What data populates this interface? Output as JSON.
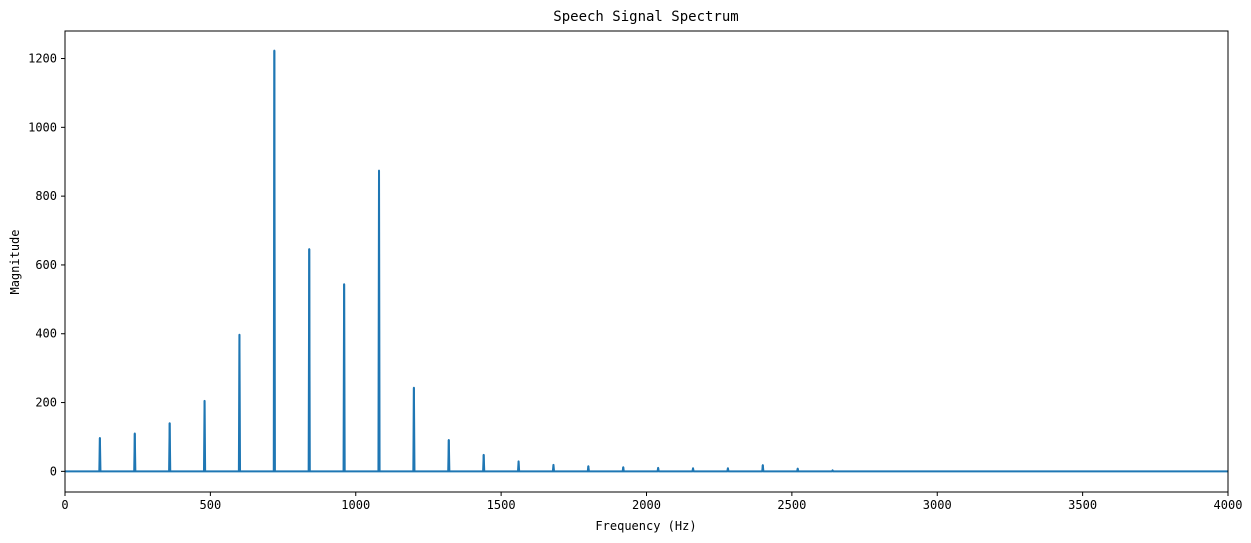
{
  "chart_data": {
    "type": "line",
    "title": "Speech Signal Spectrum",
    "xlabel": "Frequency (Hz)",
    "ylabel": "Magnitude",
    "xlim": [
      0,
      4000
    ],
    "ylim": [
      -60,
      1280
    ],
    "xticks": [
      0,
      500,
      1000,
      1500,
      2000,
      2500,
      3000,
      3500,
      4000
    ],
    "yticks": [
      0,
      200,
      400,
      600,
      800,
      1000,
      1200
    ],
    "grid": false,
    "line_color": "#1f77b4",
    "series": [
      {
        "x": [
          120,
          240,
          360,
          480,
          600,
          720,
          840,
          960,
          1080,
          1200,
          1320,
          1440,
          1560,
          1680,
          1800,
          1920,
          2040,
          2160,
          2280,
          2400,
          2520,
          2640
        ],
        "values": [
          97,
          110,
          140,
          205,
          397,
          1223,
          646,
          544,
          874,
          243,
          91,
          48,
          29,
          19,
          15,
          12,
          10,
          9,
          9,
          18,
          8,
          3
        ]
      }
    ]
  }
}
